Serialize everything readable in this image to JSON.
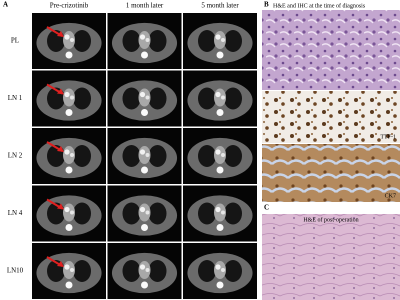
{
  "panel_a": {
    "label": "A",
    "columns": [
      "Pre-crizotinib",
      "1 month later",
      "5 month later"
    ],
    "rows": [
      "PL",
      "LN 1",
      "LN 2",
      "LN 4",
      "LN10"
    ]
  },
  "panel_b": {
    "label": "B",
    "title": "H&E and IHC at the time of diagnosis",
    "stains": [
      "TTF-1",
      "CK7"
    ]
  },
  "panel_c": {
    "label": "C",
    "title": "H&E of post-operation"
  }
}
